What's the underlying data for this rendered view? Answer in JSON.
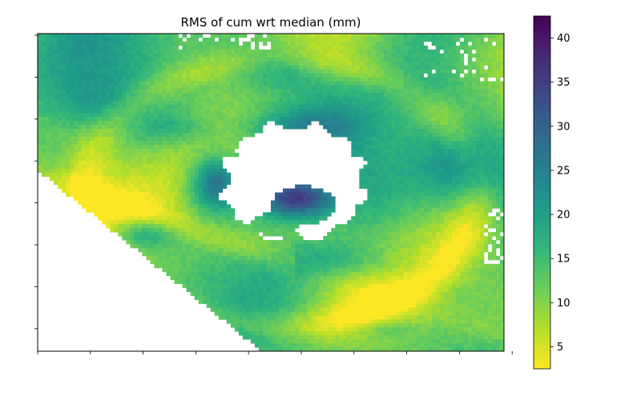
{
  "chart_data": {
    "type": "heatmap",
    "title": "RMS of cum wrt median (mm)",
    "xlabel": "",
    "ylabel": "",
    "colormap": "viridis_r",
    "colorbar": {
      "min": 2.5,
      "max": 42.5,
      "ticks": [
        5,
        10,
        15,
        20,
        25,
        30,
        35,
        40
      ],
      "tick_labels": [
        "5",
        "10",
        "15",
        "20",
        "25",
        "30",
        "35",
        "40"
      ]
    },
    "x_ticks_count": 10,
    "y_ticks_count": 8,
    "x_tick_labels_shown": false,
    "y_tick_labels_shown": false,
    "nodata_color": "#ffffff",
    "grid": false
  },
  "colors": {
    "viridis_stops": [
      "#fde725",
      "#b5de2b",
      "#6ece58",
      "#35b779",
      "#1f9e89",
      "#26828e",
      "#31688e",
      "#3e4989",
      "#482878",
      "#440154"
    ]
  }
}
